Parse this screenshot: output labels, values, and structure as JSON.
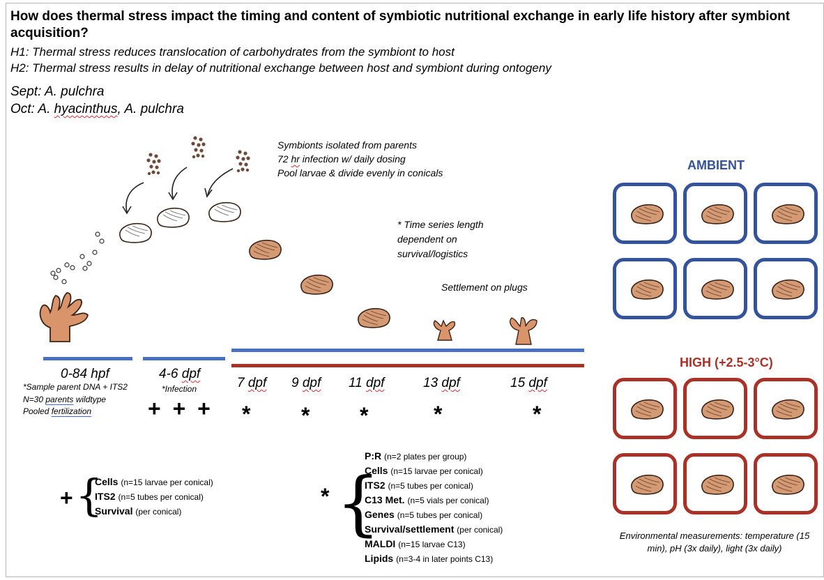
{
  "question": "How does thermal stress impact the timing and content of symbiotic nutritional exchange in early life history after symbiont acquisition?",
  "hypotheses": [
    "H1: Thermal stress reduces translocation of carbohydrates from the symbiont to host",
    "H2: Thermal stress results in delay of nutritional exchange between host and symbiont during ontogeny"
  ],
  "species": {
    "sept": "Sept: A. pulchra",
    "oct_prefix": "Oct: A. ",
    "oct_wavy": "hyacinthus",
    "oct_suffix": ", A. pulchra"
  },
  "symbiont_notes": {
    "line1": "Symbionts isolated from parents",
    "line2_a": "72 ",
    "line2_b": "hr",
    "line2_c": " infection w/ daily dosing",
    "line3": "Pool larvae & divide evenly in conicals"
  },
  "time_series_note": [
    "* Time series length",
    "dependent on",
    "survival/logistics"
  ],
  "settlement_note": "Settlement on plugs",
  "timepoints": {
    "tp0": "0-84 hpf",
    "tp1_num": "4-6 ",
    "tp1_unit": "dpf",
    "tp2_num": "7 ",
    "tp2_unit": "dpf",
    "tp3_num": "9 ",
    "tp3_unit": "dpf",
    "tp4_num": "11 ",
    "tp4_unit": "dpf",
    "tp5_num": "13 ",
    "tp5_unit": "dpf",
    "tp6_num": "15 ",
    "tp6_unit": "dpf"
  },
  "tp0_notes": {
    "line1": "*Sample parent DNA + ITS2",
    "line2_a": "N=30 ",
    "line2_b": "parents",
    "line2_c": " wildtype",
    "line3_a": "Pooled ",
    "line3_b": "fertilization"
  },
  "infection_label": "*Infection",
  "plus_markers": "+ + +",
  "star": "*",
  "plus_symbol": "+",
  "brace": "{",
  "plus_legend": [
    {
      "name": "Cells",
      "detail": "(n=15 larvae per conical)"
    },
    {
      "name": "ITS2",
      "detail": "(n=5 tubes per conical)"
    },
    {
      "name": "Survival",
      "detail": "(per conical)"
    }
  ],
  "star_legend": [
    {
      "name": "P:R",
      "detail": "(n=2 plates per group)"
    },
    {
      "name": "Cells",
      "detail": "(n=15 larvae per conical)"
    },
    {
      "name": "ITS2",
      "detail": "(n=5 tubes per conical)"
    },
    {
      "name": "C13 Met.",
      "detail": "(n=5 vials per conical)"
    },
    {
      "name": "Genes",
      "detail": "(n=5 tubes per conical)"
    },
    {
      "name": "Survival/settlement",
      "detail": "(per conical)"
    },
    {
      "name": "MALDI",
      "detail": "(n=15 larvae C13)"
    },
    {
      "name": "Lipids",
      "detail": "(n=3-4 in later points C13)"
    }
  ],
  "conditions": {
    "ambient": "AMBIENT",
    "high": "HIGH (+2.5-3°C)"
  },
  "env_note": "Environmental measurements: temperature (15 min), pH (3x daily), light (3x daily)",
  "colors": {
    "ambient": "#34539a",
    "high": "#a83228",
    "larva": "#d49a74",
    "coral": "#d9946c"
  }
}
